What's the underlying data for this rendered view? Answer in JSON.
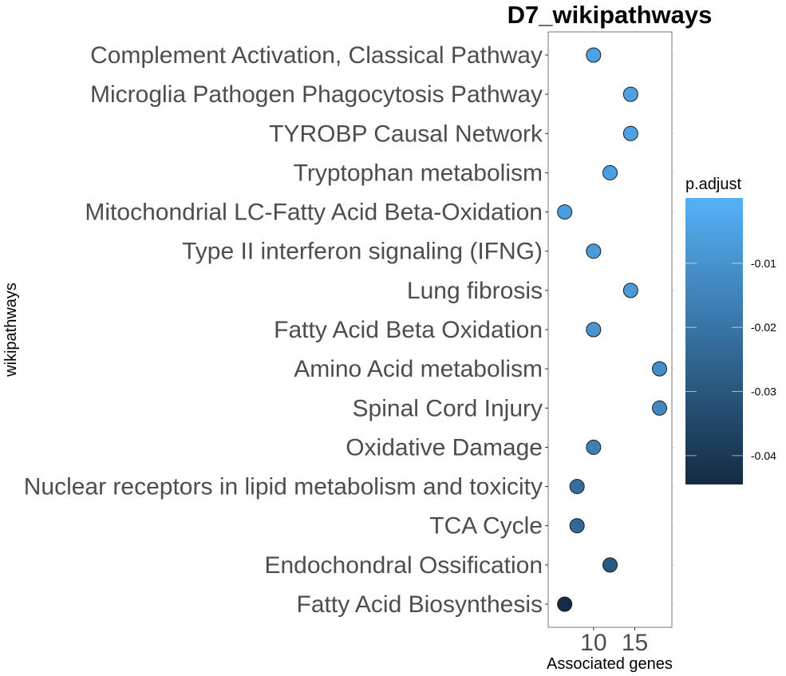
{
  "chart_data": {
    "type": "scatter",
    "title": "D7_wikipathways",
    "xlabel": "Associated genes",
    "ylabel": "wikipathways",
    "xlim": [
      4.5,
      19.5
    ],
    "x_ticks": [
      "10",
      "15"
    ],
    "grid": false,
    "legend": {
      "title": "p.adjust",
      "placement": "right",
      "ticks": [
        "-0.01",
        "-0.02",
        "-0.03",
        "-0.04"
      ],
      "tick_values": [
        -0.01,
        -0.02,
        -0.03,
        -0.04
      ],
      "range": [
        -0.0445,
        0.0002
      ],
      "low_color": "#132B43",
      "high_color": "#56B1F7"
    },
    "categories": [
      "Complement Activation, Classical Pathway",
      "Microglia Pathogen Phagocytosis Pathway",
      "TYROBP Causal Network",
      "Tryptophan metabolism",
      "Mitochondrial LC-Fatty Acid Beta-Oxidation",
      "Type II interferon signaling (IFNG)",
      "Lung fibrosis",
      "Fatty Acid Beta Oxidation",
      "Amino Acid metabolism",
      "Spinal Cord Injury",
      "Oxidative Damage",
      "Nuclear receptors in lipid metabolism and toxicity",
      "TCA Cycle",
      "Endochondral Ossification",
      "Fatty Acid Biosynthesis"
    ],
    "values": [
      10,
      14.5,
      14.5,
      12,
      6.5,
      10,
      14.5,
      10,
      18,
      18,
      10,
      8,
      8,
      12,
      6.5
    ],
    "p_adjust": [
      -0.005,
      -0.005,
      -0.005,
      -0.006,
      -0.006,
      -0.007,
      -0.007,
      -0.009,
      -0.012,
      -0.013,
      -0.016,
      -0.022,
      -0.024,
      -0.029,
      -0.044
    ]
  }
}
